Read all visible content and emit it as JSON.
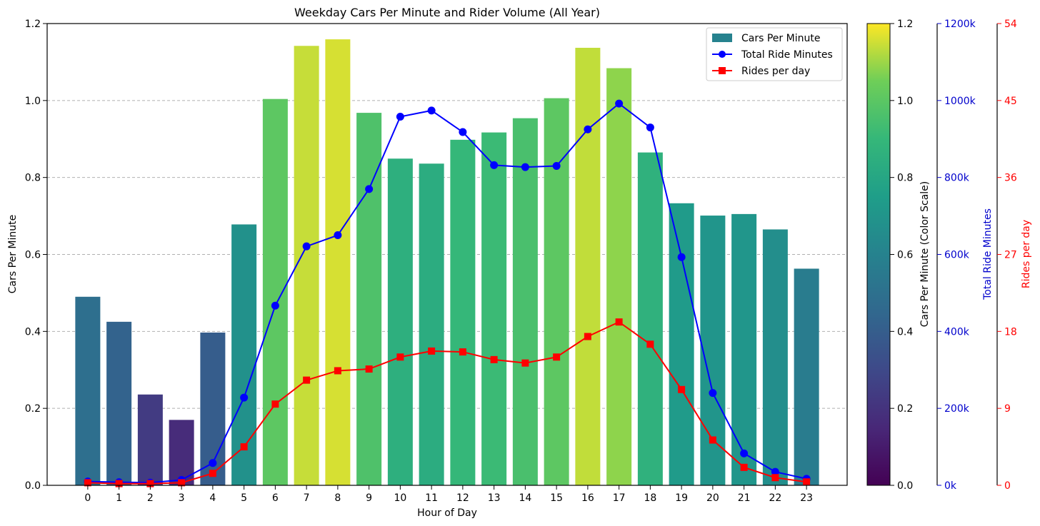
{
  "chart_data": {
    "type": "bar",
    "title": "Weekday Cars Per Minute and Rider Volume (All Year)",
    "xlabel": "Hour of Day",
    "ylabel": "Cars Per Minute",
    "categories": [
      "0",
      "1",
      "2",
      "3",
      "4",
      "5",
      "6",
      "7",
      "8",
      "9",
      "10",
      "11",
      "12",
      "13",
      "14",
      "15",
      "16",
      "17",
      "18",
      "19",
      "20",
      "21",
      "22",
      "23"
    ],
    "ylim": [
      0,
      1.2
    ],
    "yticks": [
      "0.0",
      "0.2",
      "0.4",
      "0.6",
      "0.8",
      "1.0",
      "1.2"
    ],
    "grid": "horizontal dashed",
    "legend_position": "top-right",
    "colormap": "viridis",
    "series": [
      {
        "name": "Cars Per Minute",
        "type": "bar",
        "values": [
          0.49,
          0.425,
          0.236,
          0.17,
          0.397,
          0.678,
          1.004,
          1.142,
          1.159,
          0.968,
          0.849,
          0.836,
          0.898,
          0.917,
          0.954,
          1.006,
          1.137,
          1.084,
          0.865,
          0.733,
          0.701,
          0.705,
          0.665,
          0.563
        ]
      },
      {
        "name": "Total Ride Minutes",
        "type": "line",
        "axis": "right1",
        "color": "#0000ff",
        "marker": "circle",
        "values": [
          10000,
          8000,
          7000,
          14000,
          58000,
          228000,
          467000,
          621000,
          650000,
          770000,
          958000,
          974000,
          918000,
          832000,
          827000,
          830000,
          925000,
          992000,
          930000,
          593000,
          240000,
          83000,
          35000,
          17000
        ]
      },
      {
        "name": "Rides per day",
        "type": "line",
        "axis": "right2",
        "color": "#ff0000",
        "marker": "square",
        "values": [
          0.3,
          0.2,
          0.2,
          0.3,
          1.4,
          4.5,
          9.5,
          12.3,
          13.4,
          13.6,
          15.0,
          15.7,
          15.6,
          14.7,
          14.3,
          15.0,
          17.4,
          19.1,
          16.5,
          11.2,
          5.3,
          2.1,
          0.9,
          0.4
        ]
      }
    ],
    "colorbar": {
      "label": "Cars Per Minute (Color Scale)",
      "range": [
        0,
        1.2
      ],
      "ticks": [
        "0.0",
        "0.2",
        "0.4",
        "0.6",
        "0.8",
        "1.0",
        "1.2"
      ]
    },
    "right_axis_1": {
      "label": "Total Ride Minutes",
      "color": "#0000cc",
      "range": [
        0,
        1200000
      ],
      "ticks": [
        "0k",
        "200k",
        "400k",
        "600k",
        "800k",
        "1000k",
        "1200k"
      ]
    },
    "right_axis_2": {
      "label": "Rides per day",
      "color": "#ff0000",
      "range": [
        0,
        54
      ],
      "ticks": [
        "0",
        "9",
        "18",
        "27",
        "36",
        "45",
        "54"
      ]
    }
  }
}
